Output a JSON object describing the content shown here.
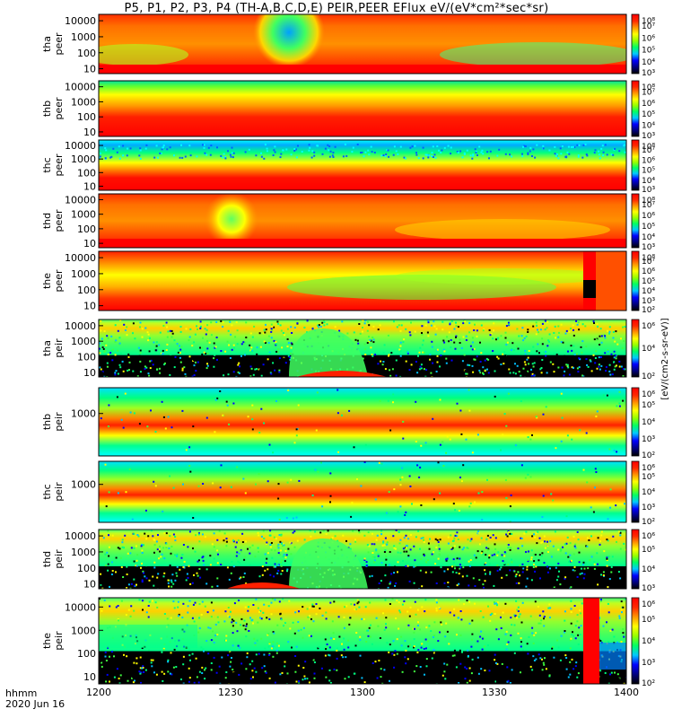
{
  "title": "P5, P1, P2, P3, P4 (TH-A,B,C,D,E) PEIR,PEER EFlux eV/(eV*cm²*sec*sr)",
  "footer": {
    "xlabel": "hhmm",
    "date": "2020 Jun 16"
  },
  "colorbar_unit": "[eV/(cm2-s-sr-eV)]",
  "palette": [
    "#000000",
    "#000080",
    "#0000ff",
    "#00c8ff",
    "#00ff64",
    "#96ff00",
    "#ffff00",
    "#ff9600",
    "#ff2800",
    "#ff0000"
  ],
  "chart_data": {
    "type": "heatmap",
    "x_ticks": [
      "1200",
      "1230",
      "1300",
      "1330",
      "1400"
    ],
    "xlim": [
      "12:00",
      "14:00"
    ],
    "yscale": "log",
    "panels": [
      {
        "name": "tha-peer",
        "label_line1": "tha",
        "label_line2": "peer",
        "y_ticks": [
          "10",
          "100",
          "1000",
          "10000"
        ],
        "ylim": [
          5,
          25000
        ],
        "cbar_ticks": [
          "10⁸",
          "10⁷",
          "10⁶",
          "10⁵",
          "10⁴",
          "10³"
        ],
        "cbar_range": [
          1000,
          100000000
        ],
        "pattern": "peer-dome-top"
      },
      {
        "name": "thb-peer",
        "label_line1": "thb",
        "label_line2": "peer",
        "y_ticks": [
          "10",
          "100",
          "1000",
          "10000"
        ],
        "ylim": [
          5,
          25000
        ],
        "cbar_ticks": [
          "10⁸",
          "10⁷",
          "10⁶",
          "10⁵",
          "10⁴",
          "10³"
        ],
        "cbar_range": [
          1000,
          100000000
        ],
        "pattern": "peer-bands"
      },
      {
        "name": "thc-peer",
        "label_line1": "thc",
        "label_line2": "peer",
        "y_ticks": [
          "10",
          "100",
          "1000",
          "10000"
        ],
        "ylim": [
          5,
          25000
        ],
        "cbar_ticks": [
          "10⁸",
          "10⁷",
          "10⁶",
          "10⁵",
          "10⁴",
          "10³"
        ],
        "cbar_range": [
          1000,
          100000000
        ],
        "pattern": "peer-bands-low"
      },
      {
        "name": "thd-peer",
        "label_line1": "thd",
        "label_line2": "peer",
        "y_ticks": [
          "10",
          "100",
          "1000",
          "10000"
        ],
        "ylim": [
          5,
          25000
        ],
        "cbar_ticks": [
          "10⁸",
          "10⁷",
          "10⁶",
          "10⁵",
          "10⁴",
          "10³"
        ],
        "cbar_range": [
          1000,
          100000000
        ],
        "pattern": "peer-dome-mid"
      },
      {
        "name": "the-peer",
        "label_line1": "the",
        "label_line2": "peer",
        "y_ticks": [
          "10",
          "100",
          "1000",
          "10000"
        ],
        "ylim": [
          5,
          25000
        ],
        "cbar_ticks": [
          "10⁸",
          "10⁷",
          "10⁶",
          "10⁵",
          "10⁴",
          "10³",
          "10²"
        ],
        "cbar_range": [
          100,
          100000000
        ],
        "pattern": "peer-late"
      },
      {
        "name": "tha-peir",
        "label_line1": "tha",
        "label_line2": "peir",
        "y_ticks": [
          "10",
          "100",
          "1000",
          "10000"
        ],
        "ylim": [
          5,
          25000
        ],
        "cbar_ticks": [
          "10⁶",
          "10⁴",
          "10²"
        ],
        "cbar_range": [
          100,
          1000000
        ],
        "pattern": "peir-arch"
      },
      {
        "name": "thb-peir",
        "label_line1": "thb",
        "label_line2": "peir",
        "y_ticks": [
          "1000"
        ],
        "ylim": [
          5,
          25000
        ],
        "cbar_ticks": [
          "10⁶",
          "10⁵",
          "10⁴",
          "10³",
          "10²"
        ],
        "cbar_range": [
          100,
          1000000
        ],
        "pattern": "peir-bands"
      },
      {
        "name": "thc-peir",
        "label_line1": "thc",
        "label_line2": "peir",
        "y_ticks": [
          "1000"
        ],
        "ylim": [
          5,
          25000
        ],
        "cbar_ticks": [
          "10⁶",
          "10⁵",
          "10⁴",
          "10³",
          "10²"
        ],
        "cbar_range": [
          100,
          1000000
        ],
        "pattern": "peir-bands"
      },
      {
        "name": "thd-peir",
        "label_line1": "thd",
        "label_line2": "peir",
        "y_ticks": [
          "10",
          "100",
          "1000",
          "10000"
        ],
        "ylim": [
          5,
          25000
        ],
        "cbar_ticks": [
          "10⁶",
          "10⁵",
          "10⁴",
          "10³"
        ],
        "cbar_range": [
          1000,
          1000000
        ],
        "pattern": "peir-arch"
      },
      {
        "name": "the-peir",
        "label_line1": "the",
        "label_line2": "peir",
        "y_ticks": [
          "10",
          "100",
          "1000",
          "10000"
        ],
        "ylim": [
          5,
          25000
        ],
        "cbar_ticks": [
          "10⁶",
          "10⁵",
          "10⁴",
          "10³",
          "10²"
        ],
        "cbar_range": [
          100,
          1000000
        ],
        "pattern": "peir-late"
      }
    ]
  }
}
